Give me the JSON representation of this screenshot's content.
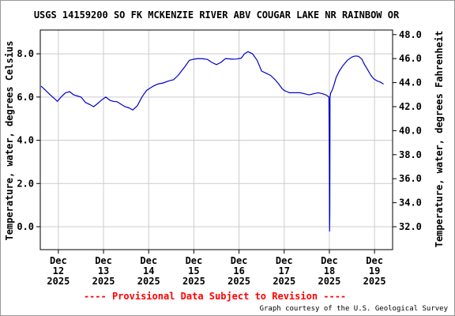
{
  "chart_data": {
    "type": "line",
    "title": "USGS 14159200 SO FK MCKENZIE RIVER ABV COUGAR LAKE NR RAINBOW OR",
    "ylabel_left": "Temperature, water, degrees Celsius",
    "ylabel_right": "Temperature, water, degrees Fahrenheit",
    "ylim": [
      -1.06,
      9.1
    ],
    "yticks_left": [
      "0.0",
      "2.0",
      "4.0",
      "6.0",
      "8.0"
    ],
    "yticks_left_values": [
      0,
      2,
      4,
      6,
      8
    ],
    "yticks_right": [
      "32.0",
      "34.0",
      "36.0",
      "38.0",
      "40.0",
      "42.0",
      "44.0",
      "46.0",
      "48.0"
    ],
    "yticks_right_values_f": [
      32,
      34,
      36,
      38,
      40,
      42,
      44,
      46,
      48
    ],
    "xlim": [
      11.6,
      19.4
    ],
    "xticks": [
      {
        "x": 12,
        "lines": [
          "Dec",
          "12",
          "2025"
        ]
      },
      {
        "x": 13,
        "lines": [
          "Dec",
          "13",
          "2025"
        ]
      },
      {
        "x": 14,
        "lines": [
          "Dec",
          "14",
          "2025"
        ]
      },
      {
        "x": 15,
        "lines": [
          "Dec",
          "15",
          "2025"
        ]
      },
      {
        "x": 16,
        "lines": [
          "Dec",
          "16",
          "2025"
        ]
      },
      {
        "x": 17,
        "lines": [
          "Dec",
          "17",
          "2025"
        ]
      },
      {
        "x": 18,
        "lines": [
          "Dec",
          "18",
          "2025"
        ]
      },
      {
        "x": 19,
        "lines": [
          "Dec",
          "19",
          "2025"
        ]
      }
    ],
    "grid": true,
    "line_color": "#0000cc",
    "series": [
      {
        "x": [
          11.62,
          11.72,
          11.82,
          11.9,
          11.98,
          12.06,
          12.16,
          12.25,
          12.34,
          12.42,
          12.5,
          12.6,
          12.7,
          12.78,
          12.87,
          12.95,
          13.05,
          13.14,
          13.22,
          13.3,
          13.4,
          13.48,
          13.56,
          13.65,
          13.75,
          13.85,
          13.95,
          14.02,
          14.1,
          14.2,
          14.32,
          14.45,
          14.55,
          14.65,
          14.8,
          14.9,
          15.0,
          15.1,
          15.2,
          15.3,
          15.4,
          15.5,
          15.6,
          15.7,
          15.85,
          15.95,
          16.05,
          16.12,
          16.2,
          16.3,
          16.4,
          16.5,
          16.6,
          16.7,
          16.8,
          16.88,
          16.95,
          17.0,
          17.06,
          17.12,
          17.18,
          17.25,
          17.35,
          17.45,
          17.55,
          17.65,
          17.75,
          17.85,
          17.92,
          17.96,
          17.99,
          18.0,
          18.005,
          18.01,
          18.015,
          18.03,
          18.06,
          18.1,
          18.15,
          18.22,
          18.3,
          18.4,
          18.5,
          18.58,
          18.65,
          18.72,
          18.78,
          18.85,
          18.92,
          18.98,
          19.05,
          19.12,
          19.2
        ],
        "y": [
          6.5,
          6.3,
          6.1,
          5.95,
          5.8,
          6.0,
          6.2,
          6.25,
          6.1,
          6.05,
          6.0,
          5.75,
          5.65,
          5.55,
          5.7,
          5.85,
          6.0,
          5.85,
          5.8,
          5.78,
          5.65,
          5.55,
          5.5,
          5.4,
          5.6,
          6.0,
          6.3,
          6.4,
          6.5,
          6.6,
          6.65,
          6.75,
          6.8,
          7.0,
          7.4,
          7.7,
          7.75,
          7.78,
          7.77,
          7.74,
          7.6,
          7.5,
          7.6,
          7.78,
          7.75,
          7.76,
          7.8,
          8.0,
          8.1,
          8.0,
          7.7,
          7.2,
          7.1,
          7.0,
          6.8,
          6.6,
          6.4,
          6.3,
          6.25,
          6.2,
          6.2,
          6.2,
          6.2,
          6.15,
          6.1,
          6.15,
          6.2,
          6.15,
          6.1,
          6.05,
          6.0,
          3.0,
          -0.2,
          0.6,
          6.0,
          6.2,
          6.3,
          6.55,
          6.9,
          7.2,
          7.45,
          7.7,
          7.85,
          7.9,
          7.88,
          7.75,
          7.5,
          7.25,
          7.0,
          6.85,
          6.75,
          6.7,
          6.6
        ]
      }
    ]
  },
  "provisional_text": "---- Provisional Data Subject to Revision ----",
  "credit_text": "Graph courtesy of the U.S. Geological Survey"
}
